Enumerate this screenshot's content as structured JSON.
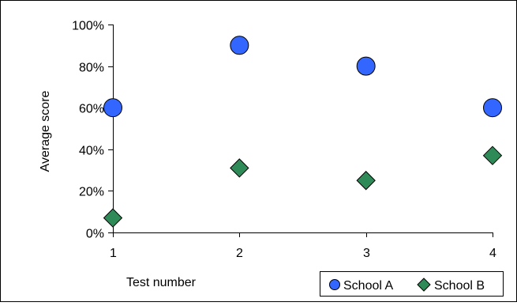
{
  "chart_data": {
    "type": "scatter",
    "title": "",
    "xlabel": "Test number",
    "ylabel": "Average score",
    "x_ticks": [
      "1",
      "2",
      "3",
      "4"
    ],
    "y_ticks": [
      "0%",
      "20%",
      "40%",
      "60%",
      "80%",
      "100%"
    ],
    "xlim": [
      1,
      4
    ],
    "ylim": [
      0,
      1
    ],
    "grid": false,
    "legend_position": "bottom-right",
    "series": [
      {
        "name": "School A",
        "marker": "circle",
        "color": "#3366ff",
        "points": [
          {
            "x": 1,
            "y": 0.6
          },
          {
            "x": 2,
            "y": 0.9
          },
          {
            "x": 3,
            "y": 0.8
          },
          {
            "x": 4,
            "y": 0.6
          }
        ]
      },
      {
        "name": "School B",
        "marker": "diamond",
        "color": "#2e8b57",
        "points": [
          {
            "x": 1,
            "y": 0.07
          },
          {
            "x": 2,
            "y": 0.31
          },
          {
            "x": 3,
            "y": 0.25
          },
          {
            "x": 4,
            "y": 0.37
          }
        ]
      }
    ]
  }
}
